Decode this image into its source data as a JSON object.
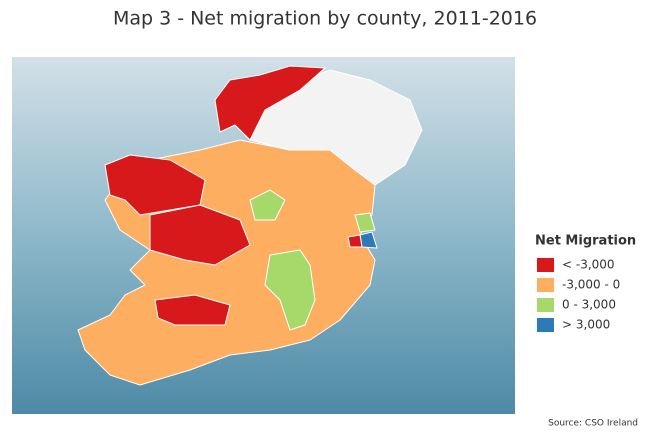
{
  "title": "Map 3 - Net migration by county, 2011-2016",
  "legend": {
    "title": "Net Migration",
    "items": [
      {
        "label": "< -3,000",
        "color": "#d7191c"
      },
      {
        "label": "-3,000 - 0",
        "color": "#fdae61"
      },
      {
        "label": "0 - 3,000",
        "color": "#a6d96a"
      },
      {
        "label": "> 3,000",
        "color": "#2c7bb6"
      }
    ]
  },
  "source": "Source: CSO Ireland"
}
